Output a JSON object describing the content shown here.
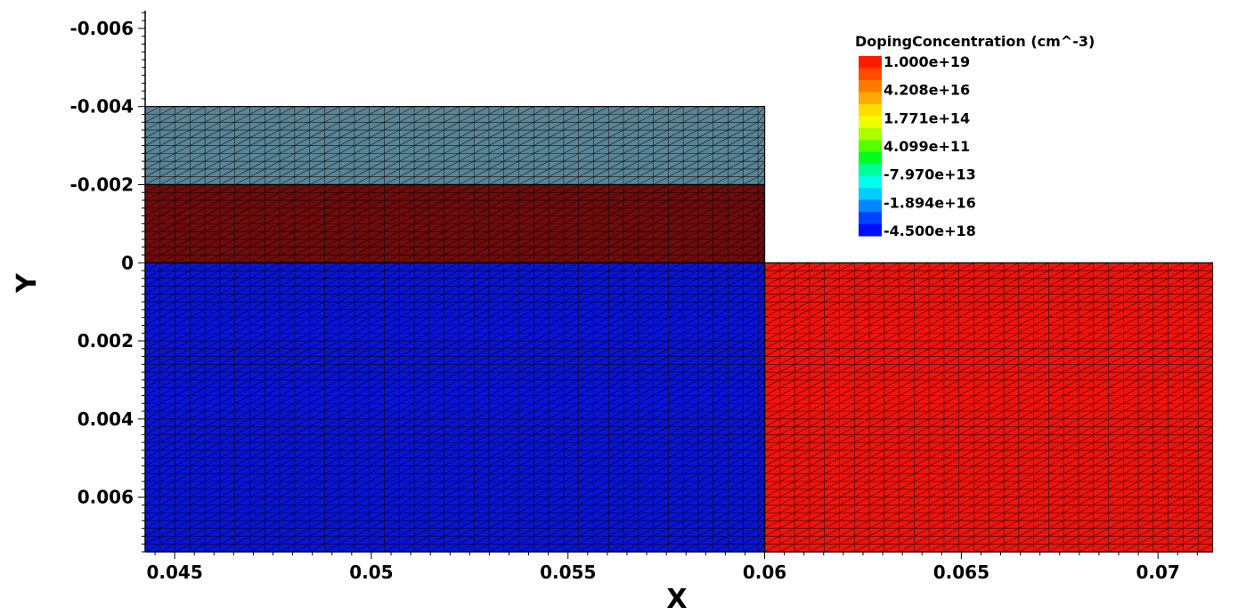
{
  "chart_data": {
    "type": "heatmap",
    "title": "",
    "xlabel": "X",
    "ylabel": "Y",
    "xlim": [
      0.04425,
      0.0714
    ],
    "ylim": [
      -0.0065,
      0.0074
    ],
    "y_inverted": true,
    "grid": false,
    "x_ticks": [
      "0.045",
      "0.05",
      "0.055",
      "0.06",
      "0.065",
      "0.07"
    ],
    "x_tick_values": [
      0.045,
      0.05,
      0.055,
      0.06,
      0.065,
      0.07
    ],
    "y_ticks": [
      "-0.006",
      "-0.004",
      "-0.002",
      "0",
      "0.002",
      "0.004",
      "0.006"
    ],
    "y_tick_values": [
      -0.006,
      -0.004,
      -0.002,
      0,
      0.002,
      0.004,
      0.006
    ],
    "regions": [
      {
        "name": "top layer",
        "x": [
          0.04425,
          0.06
        ],
        "y": [
          -0.004,
          -0.002
        ],
        "color": "#5a8596"
      },
      {
        "name": "dark red layer",
        "x": [
          0.04425,
          0.06
        ],
        "y": [
          -0.002,
          0
        ],
        "color": "#700c0c"
      },
      {
        "name": "blue region",
        "x": [
          0.04425,
          0.06
        ],
        "y": [
          0,
          0.0074
        ],
        "color": "#0a14d6"
      },
      {
        "name": "red region",
        "x": [
          0.06,
          0.0714
        ],
        "y": [
          0,
          0.0074
        ],
        "color": "#f2140c"
      }
    ],
    "mesh_spacing_x": 0.00038,
    "mesh_spacing_y": 0.0002,
    "legend": {
      "title": "DopingConcentration (cm^-3)",
      "position": "top-right",
      "labels": [
        "1.000e+19",
        "4.208e+16",
        "1.771e+14",
        "4.099e+11",
        "-7.970e+13",
        "-1.894e+16",
        "-4.500e+18"
      ],
      "colors": [
        "#ff1a00",
        "#ff4a00",
        "#ff7a00",
        "#ffaa00",
        "#ffdd00",
        "#f0ff00",
        "#aaff00",
        "#55ff00",
        "#00ff22",
        "#00ff99",
        "#00ffee",
        "#00ccff",
        "#0088ff",
        "#0044ff",
        "#0010ff"
      ]
    }
  }
}
